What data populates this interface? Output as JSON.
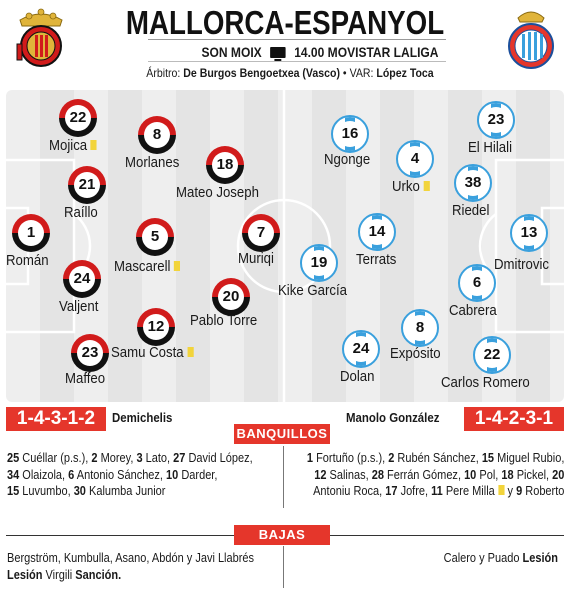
{
  "header": {
    "title": "MALLORCA-ESPANYOL",
    "venue": "SON MOIX",
    "time_tv": "14.00 MOVISTAR LALIGA",
    "referee_label": "Árbitro:",
    "referee_name": "De Burgos Bengoetxea (Vasco)",
    "var_label": "VAR:",
    "var_name": "López Toca"
  },
  "colors": {
    "mallorca_red": "#d11b1b",
    "mallorca_black": "#111111",
    "espanyol_blue": "#3aa0dd",
    "accent_red": "#e5362b",
    "yellow_card": "#f2d43b"
  },
  "home": {
    "formation": "1-4-3-1-2",
    "coach": "Demichelis",
    "players": [
      {
        "number": "22",
        "name": "Mojica",
        "yellow": true
      },
      {
        "number": "8",
        "name": "Morlanes",
        "yellow": false
      },
      {
        "number": "21",
        "name": "Raíllo",
        "yellow": false
      },
      {
        "number": "18",
        "name": "Mateo Joseph",
        "yellow": false
      },
      {
        "number": "1",
        "name": "Román",
        "yellow": false
      },
      {
        "number": "5",
        "name": "Mascarell",
        "yellow": true
      },
      {
        "number": "7",
        "name": "Muriqi",
        "yellow": false
      },
      {
        "number": "24",
        "name": "Valjent",
        "yellow": false
      },
      {
        "number": "20",
        "name": "Pablo Torre",
        "yellow": false
      },
      {
        "number": "12",
        "name": "Samu Costa",
        "yellow": true
      },
      {
        "number": "23",
        "name": "Maffeo",
        "yellow": false
      }
    ],
    "subs": [
      {
        "num": "25",
        "name": "Cuéllar (p.s.)"
      },
      {
        "num": "2",
        "name": "Morey"
      },
      {
        "num": "3",
        "name": "Lato"
      },
      {
        "num": "27",
        "name": "David López"
      },
      {
        "num": "34",
        "name": "Olaizola"
      },
      {
        "num": "6",
        "name": "Antonio Sánchez"
      },
      {
        "num": "10",
        "name": "Darder"
      },
      {
        "num": "15",
        "name": "Luvumbo"
      },
      {
        "num": "30",
        "name": "Kalumba Junior"
      }
    ],
    "absences_names": "Bergström, Kumbulla, Asano, Abdón y Javi Llabrés",
    "absences_reason1": "Lesión",
    "absences_names2": "Virgili",
    "absences_reason2": "Sanción."
  },
  "away": {
    "formation": "1-4-2-3-1",
    "coach": "Manolo González",
    "players": [
      {
        "number": "16",
        "name": "Ngonge",
        "yellow": false
      },
      {
        "number": "23",
        "name": "El Hilali",
        "yellow": false
      },
      {
        "number": "4",
        "name": "Urko",
        "yellow": true
      },
      {
        "number": "38",
        "name": "Riedel",
        "yellow": false
      },
      {
        "number": "14",
        "name": "Terrats",
        "yellow": false
      },
      {
        "number": "13",
        "name": "Dmitrovic",
        "yellow": false
      },
      {
        "number": "19",
        "name": "Kike García",
        "yellow": false
      },
      {
        "number": "6",
        "name": "Cabrera",
        "yellow": false
      },
      {
        "number": "8",
        "name": "Expósito",
        "yellow": false
      },
      {
        "number": "24",
        "name": "Dolan",
        "yellow": false
      },
      {
        "number": "22",
        "name": "Carlos Romero",
        "yellow": false
      }
    ],
    "subs": [
      {
        "num": "1",
        "name": "Fortuño (p.s.)"
      },
      {
        "num": "2",
        "name": "Rubén Sánchez"
      },
      {
        "num": "15",
        "name": "Miguel Rubio"
      },
      {
        "num": "12",
        "name": "Salinas"
      },
      {
        "num": "28",
        "name": "Ferrán Gómez"
      },
      {
        "num": "10",
        "name": "Pol"
      },
      {
        "num": "18",
        "name": "Pickel"
      },
      {
        "num": "20",
        "name": "Antoniu Roca"
      },
      {
        "num": "17",
        "name": "Jofre"
      },
      {
        "num": "11",
        "name": "Pere Milla"
      },
      {
        "num": "9",
        "name": "Roberto"
      }
    ],
    "sub_joiner": "y",
    "absences_names": "Calero y Puado",
    "absences_reason": "Lesión"
  },
  "sections": {
    "bench": "BANQUILLOS",
    "absences": "BAJAS"
  },
  "icons": {
    "tv": "tv-icon",
    "yellow_card": "yellow-card-icon",
    "home_crest": "mallorca-crest-icon",
    "away_crest": "espanyol-crest-icon"
  }
}
